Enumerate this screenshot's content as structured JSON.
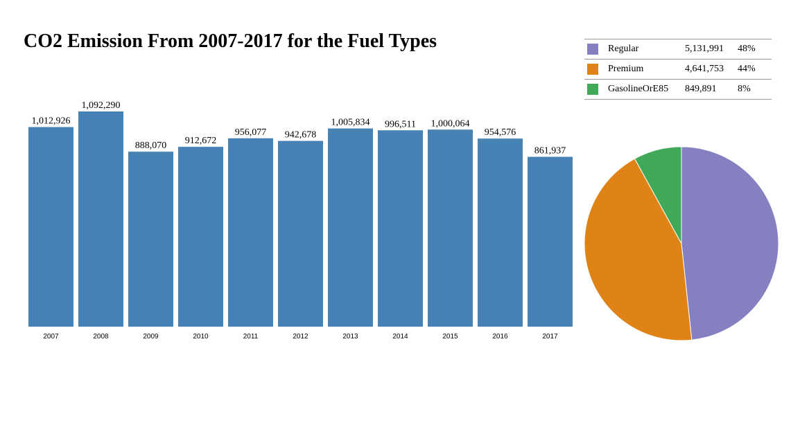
{
  "title": "CO2 Emission From 2007-2017 for the Fuel Types",
  "colors": {
    "bar": "#4682b4"
  },
  "chart_data": [
    {
      "type": "bar",
      "title": "CO2 Emission From 2007-2017 for the Fuel Types",
      "categories": [
        "2007",
        "2008",
        "2009",
        "2010",
        "2011",
        "2012",
        "2013",
        "2014",
        "2015",
        "2016",
        "2017"
      ],
      "values": [
        1012926,
        1092290,
        888070,
        912672,
        956077,
        942678,
        1005834,
        996511,
        1000064,
        954576,
        861937
      ],
      "value_labels": [
        "1,012,926",
        "1,092,290",
        "888,070",
        "912,672",
        "956,077",
        "942,678",
        "1,005,834",
        "996,511",
        "1,000,064",
        "954,576",
        "861,937"
      ],
      "ylim": [
        0,
        1092290
      ],
      "grid": false
    },
    {
      "type": "pie",
      "slices": [
        {
          "label": "Regular",
          "value": 5131991,
          "value_label": "5,131,991",
          "percent": "48%",
          "color": "#8580c0"
        },
        {
          "label": "Premium",
          "value": 4641753,
          "value_label": "4,641,753",
          "percent": "44%",
          "color": "#e08316"
        },
        {
          "label": "GasolineOrE85",
          "value": 849891,
          "value_label": "849,891",
          "percent": "8%",
          "color": "#41aa58"
        }
      ],
      "legend_position": "top-right"
    }
  ]
}
